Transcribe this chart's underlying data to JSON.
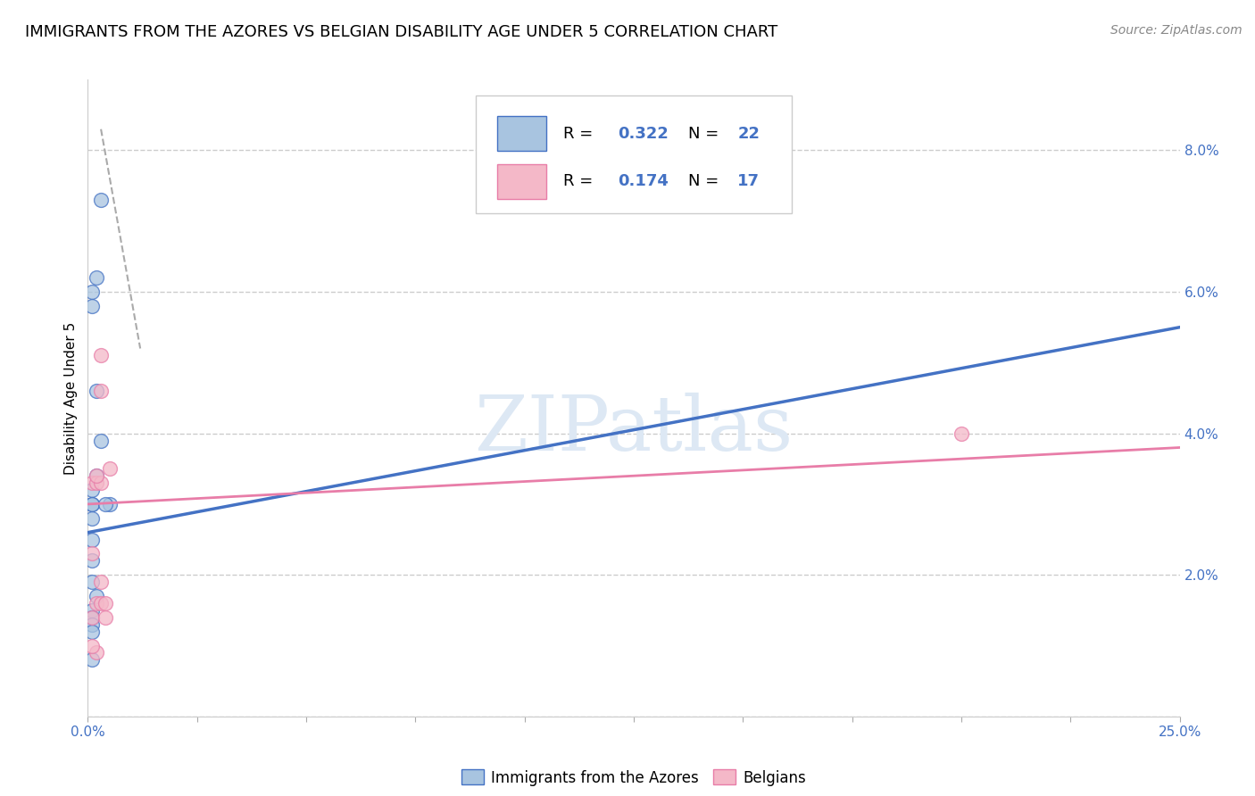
{
  "title": "IMMIGRANTS FROM THE AZORES VS BELGIAN DISABILITY AGE UNDER 5 CORRELATION CHART",
  "source": "Source: ZipAtlas.com",
  "ylabel": "Disability Age Under 5",
  "watermark": "ZIPatlas",
  "xmin": 0.0,
  "xmax": 0.25,
  "ymin": 0.0,
  "ymax": 0.09,
  "xticks": [
    0.0,
    0.025,
    0.05,
    0.075,
    0.1,
    0.125,
    0.15,
    0.175,
    0.2,
    0.225,
    0.25
  ],
  "yticks": [
    0.0,
    0.02,
    0.04,
    0.06,
    0.08
  ],
  "ytick_labels": [
    "",
    "2.0%",
    "4.0%",
    "6.0%",
    "8.0%"
  ],
  "blue_scatter_x": [
    0.001,
    0.002,
    0.003,
    0.001,
    0.002,
    0.001,
    0.001,
    0.002,
    0.001,
    0.001,
    0.001,
    0.001,
    0.001,
    0.002,
    0.001,
    0.001,
    0.001,
    0.001,
    0.001,
    0.003,
    0.005,
    0.004
  ],
  "blue_scatter_y": [
    0.06,
    0.062,
    0.073,
    0.058,
    0.046,
    0.032,
    0.03,
    0.034,
    0.03,
    0.028,
    0.025,
    0.022,
    0.019,
    0.017,
    0.015,
    0.014,
    0.013,
    0.012,
    0.008,
    0.039,
    0.03,
    0.03
  ],
  "pink_scatter_x": [
    0.001,
    0.002,
    0.003,
    0.003,
    0.001,
    0.001,
    0.002,
    0.003,
    0.003,
    0.003,
    0.004,
    0.004,
    0.002,
    0.002,
    0.001,
    0.2,
    0.005
  ],
  "pink_scatter_y": [
    0.033,
    0.033,
    0.051,
    0.046,
    0.023,
    0.014,
    0.016,
    0.019,
    0.016,
    0.033,
    0.016,
    0.014,
    0.034,
    0.009,
    0.01,
    0.04,
    0.035
  ],
  "blue_line_x": [
    0.0,
    0.25
  ],
  "blue_line_y": [
    0.026,
    0.055
  ],
  "pink_line_x": [
    0.0,
    0.25
  ],
  "pink_line_y": [
    0.03,
    0.038
  ],
  "dashed_line_x": [
    0.003,
    0.012
  ],
  "dashed_line_y": [
    0.083,
    0.052
  ],
  "blue_color": "#a8c4e0",
  "blue_line_color": "#4472C4",
  "pink_color": "#f4b8c8",
  "pink_line_color": "#e87da8",
  "scatter_size": 130,
  "background_color": "#ffffff",
  "grid_color": "#cccccc",
  "title_fontsize": 13,
  "axis_label_fontsize": 11,
  "tick_fontsize": 11,
  "watermark_color": "#dde8f4",
  "legend_fontsize": 13
}
